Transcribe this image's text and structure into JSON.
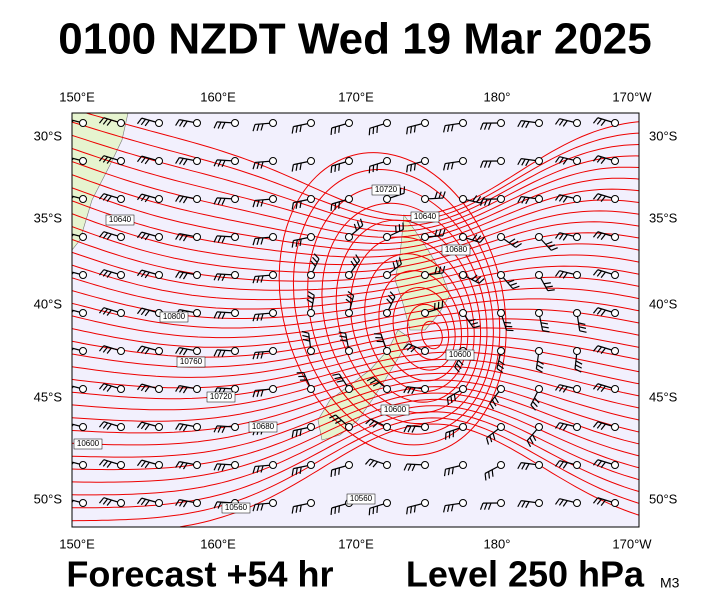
{
  "title": "0100 NZDT Wed 19 Mar 2025",
  "lon_labels": [
    "150°E",
    "160°E",
    "170°E",
    "180°",
    "170°W"
  ],
  "lat_labels": [
    "30°S",
    "35°S",
    "40°S",
    "45°S",
    "50°S"
  ],
  "contour_labels": [
    "10640",
    "10800",
    "10760",
    "10720",
    "10680",
    "10720",
    "10640",
    "10680",
    "10600",
    "10560",
    "10600",
    "10600",
    "10560"
  ],
  "footer": {
    "forecast": "Forecast +54 hr",
    "level": "Level 250 hPa",
    "code": "M3"
  }
}
